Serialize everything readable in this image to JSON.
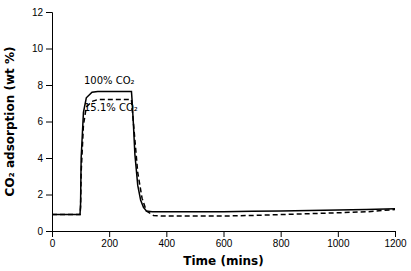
{
  "chart_data": {
    "type": "line",
    "xlabel": "Time (mins)",
    "ylabel": "CO₂ adsorption (wt %)",
    "xlim": [
      0,
      1200
    ],
    "ylim": [
      0,
      12
    ],
    "xticks": [
      0,
      200,
      400,
      600,
      800,
      1000,
      1200
    ],
    "yticks": [
      0,
      2,
      4,
      6,
      8,
      10,
      12
    ],
    "color": "#000000",
    "series": [
      {
        "line_style": "solid",
        "color": "#000000",
        "x": [
          0,
          98,
          100,
          102,
          110,
          120,
          140,
          160,
          200,
          250,
          270,
          278,
          280,
          285,
          290,
          300,
          310,
          320,
          330,
          350,
          380,
          420,
          500,
          600,
          700,
          800,
          900,
          1000,
          1100,
          1200
        ],
        "values": [
          0.9,
          0.9,
          1.5,
          4.0,
          6.5,
          7.3,
          7.6,
          7.65,
          7.65,
          7.65,
          7.65,
          7.65,
          7.2,
          5.8,
          4.2,
          2.5,
          1.7,
          1.3,
          1.1,
          1.05,
          1.05,
          1.05,
          1.05,
          1.05,
          1.08,
          1.1,
          1.12,
          1.15,
          1.18,
          1.22
        ]
      },
      {
        "line_style": "dashed",
        "color": "#000000",
        "x": [
          0,
          98,
          100,
          102,
          110,
          120,
          140,
          160,
          200,
          250,
          270,
          278,
          280,
          290,
          300,
          315,
          330,
          355,
          390,
          430,
          500,
          600,
          700,
          800,
          900,
          1000,
          1100,
          1200
        ],
        "values": [
          0.9,
          0.9,
          1.3,
          3.2,
          5.8,
          6.8,
          7.1,
          7.2,
          7.2,
          7.2,
          7.2,
          7.2,
          6.8,
          5.0,
          3.2,
          1.8,
          1.1,
          0.85,
          0.82,
          0.82,
          0.82,
          0.82,
          0.85,
          0.9,
          0.95,
          1.0,
          1.05,
          1.18
        ]
      }
    ],
    "annotations": [
      {
        "text": "100% CO₂",
        "x": 112,
        "y": 8.05
      },
      {
        "text": "15.1% CO₂",
        "x": 112,
        "y": 6.55
      }
    ]
  }
}
